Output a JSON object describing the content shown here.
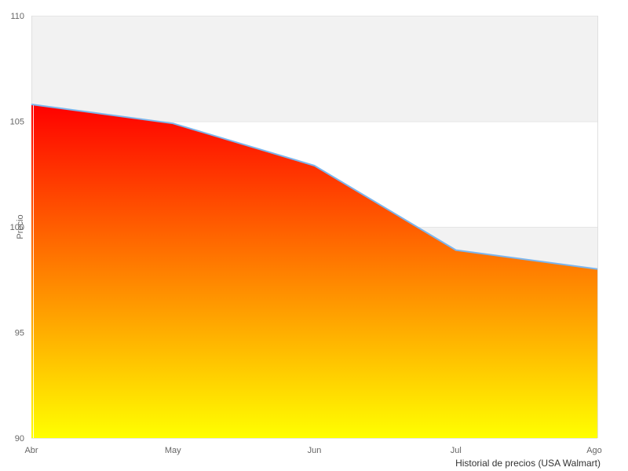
{
  "chart_data": {
    "type": "area",
    "title": "",
    "caption": "Historial de precios (USA Walmart)",
    "xlabel": "",
    "ylabel": "Precio",
    "categories": [
      "Abr",
      "May",
      "Jun",
      "Jul",
      "Ago"
    ],
    "series": [
      {
        "name": "Precio",
        "values": [
          105.8,
          104.9,
          102.9,
          98.9,
          98.0
        ]
      }
    ],
    "ylim": [
      90,
      110
    ],
    "yticks": [
      90,
      95,
      100,
      105,
      110
    ],
    "grid": "horizontal",
    "alternating_bands": [
      [
        105,
        110
      ],
      [
        95,
        100
      ]
    ],
    "legend": "none",
    "colors": {
      "line": "#7cb5ec",
      "area_gradient_top": "#ff0000",
      "area_gradient_bottom": "#ffff00",
      "band_fill": "#f2f2f2",
      "gridline": "#e6e6e6",
      "plot_border": "#e0e0e0",
      "tick_label": "#666666",
      "axis_title": "#666666",
      "caption_text": "#333333",
      "background": "#ffffff"
    }
  }
}
